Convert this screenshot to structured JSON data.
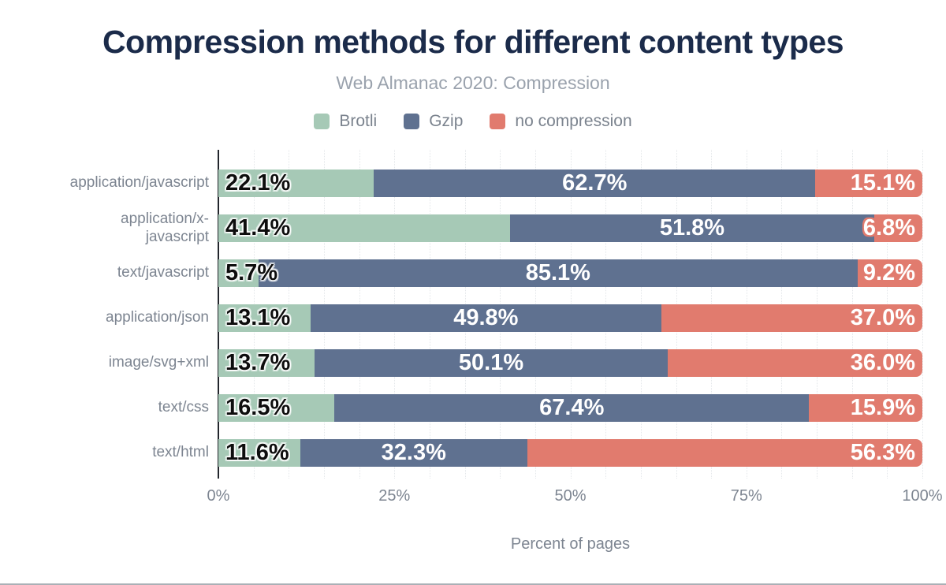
{
  "title": "Compression methods for different content types",
  "subtitle": "Web Almanac 2020: Compression",
  "xlabel": "Percent of pages",
  "colors": {
    "brotli": "#a6c9b6",
    "gzip": "#5f7190",
    "no_compression": "#e17b6e",
    "title": "#1b2b4a",
    "axis": "#23262d"
  },
  "legend": [
    {
      "label": "Brotli",
      "color": "#a6c9b6"
    },
    {
      "label": "Gzip",
      "color": "#5f7190"
    },
    {
      "label": "no compression",
      "color": "#e17b6e"
    }
  ],
  "x_ticks": [
    {
      "label": "0%",
      "value": 0
    },
    {
      "label": "25%",
      "value": 25
    },
    {
      "label": "50%",
      "value": 50
    },
    {
      "label": "75%",
      "value": 75
    },
    {
      "label": "100%",
      "value": 100
    }
  ],
  "chart_data": {
    "type": "bar",
    "orientation": "horizontal",
    "stacked": true,
    "title": "Compression methods for different content types",
    "subtitle": "Web Almanac 2020: Compression",
    "xlabel": "Percent of pages",
    "xlim": [
      0,
      100
    ],
    "grid": "vertical-dotted-every-5",
    "legend_position": "top-center",
    "categories": [
      "application/javascript",
      "application/x-javascript",
      "text/javascript",
      "application/json",
      "image/svg+xml",
      "text/css",
      "text/html"
    ],
    "series": [
      {
        "name": "Brotli",
        "color": "#a6c9b6",
        "values": [
          22.1,
          41.4,
          5.7,
          13.1,
          13.7,
          16.5,
          11.6
        ]
      },
      {
        "name": "Gzip",
        "color": "#5f7190",
        "values": [
          62.7,
          51.8,
          85.1,
          49.8,
          50.1,
          67.4,
          32.3
        ]
      },
      {
        "name": "no compression",
        "color": "#e17b6e",
        "values": [
          15.1,
          6.8,
          9.2,
          37.0,
          36.0,
          15.9,
          56.3
        ]
      }
    ]
  }
}
